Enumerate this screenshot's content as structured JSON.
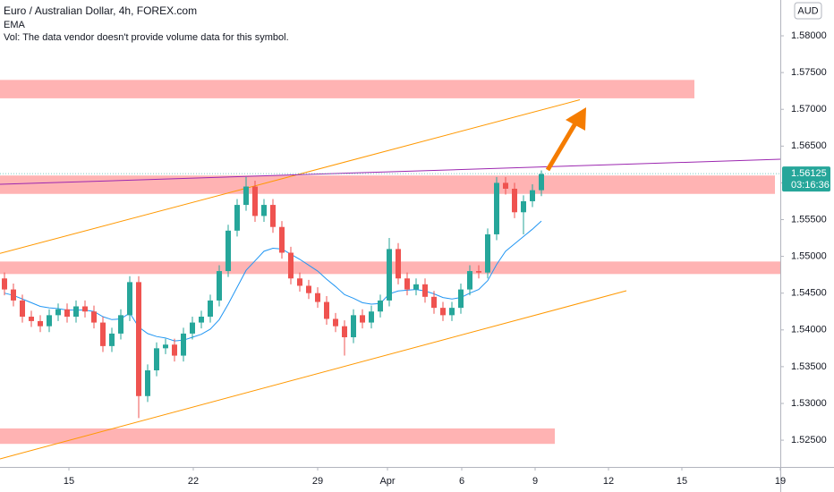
{
  "chart_data": {
    "type": "candlestick",
    "title": "Euro / Australian Dollar, 4h, FOREX.com",
    "indicator": "EMA",
    "volume_note": "Vol: The data vendor doesn't provide volume data for this symbol.",
    "currency": "AUD",
    "up_color": "#26a69a",
    "down_color": "#ef5350",
    "open": [
      1.547,
      1.5455,
      1.544,
      1.5418,
      1.5412,
      1.5405,
      1.542,
      1.5428,
      1.5418,
      1.5432,
      1.5425,
      1.541,
      1.5378,
      1.5395,
      1.542,
      1.5465,
      1.531,
      1.5345,
      1.5375,
      1.538,
      1.5365,
      1.5395,
      1.541,
      1.5418,
      1.544,
      1.548,
      1.5535,
      1.557,
      1.5595,
      1.5555,
      1.557,
      1.554,
      1.5505,
      1.547,
      1.546,
      1.545,
      1.5438,
      1.5415,
      1.5405,
      1.539,
      1.542,
      1.541,
      1.5425,
      1.544,
      1.551,
      1.547,
      1.5455,
      1.5462,
      1.5445,
      1.543,
      1.542,
      1.543,
      1.5455,
      1.548,
      1.5478,
      1.553,
      1.56,
      1.5592,
      1.556,
      1.5575,
      1.559
    ],
    "high": [
      1.5478,
      1.5463,
      1.5448,
      1.5426,
      1.542,
      1.5428,
      1.5436,
      1.5436,
      1.544,
      1.544,
      1.5433,
      1.5418,
      1.5403,
      1.5428,
      1.5473,
      1.5473,
      1.5353,
      1.5383,
      1.5388,
      1.5388,
      1.5403,
      1.5418,
      1.5426,
      1.5448,
      1.5488,
      1.5543,
      1.5578,
      1.5608,
      1.5603,
      1.5578,
      1.5578,
      1.5548,
      1.5513,
      1.5478,
      1.5468,
      1.5458,
      1.5446,
      1.5423,
      1.5413,
      1.5428,
      1.5428,
      1.5433,
      1.5448,
      1.5525,
      1.5518,
      1.5478,
      1.547,
      1.547,
      1.5453,
      1.5438,
      1.5438,
      1.5463,
      1.5488,
      1.5488,
      1.5538,
      1.5608,
      1.5608,
      1.56,
      1.5583,
      1.5598,
      1.5617
    ],
    "low": [
      1.5447,
      1.5432,
      1.541,
      1.5404,
      1.5397,
      1.5397,
      1.5412,
      1.541,
      1.541,
      1.5417,
      1.5402,
      1.537,
      1.537,
      1.5387,
      1.5412,
      1.528,
      1.5302,
      1.5337,
      1.5367,
      1.5357,
      1.5357,
      1.5387,
      1.5402,
      1.541,
      1.5432,
      1.5472,
      1.5527,
      1.5562,
      1.5547,
      1.5547,
      1.5532,
      1.5497,
      1.5462,
      1.5452,
      1.5442,
      1.543,
      1.5407,
      1.5397,
      1.5365,
      1.5382,
      1.5402,
      1.5402,
      1.5417,
      1.5432,
      1.5462,
      1.5447,
      1.5447,
      1.5437,
      1.5422,
      1.5412,
      1.5412,
      1.5422,
      1.5447,
      1.547,
      1.547,
      1.5522,
      1.5584,
      1.5552,
      1.553,
      1.5567,
      1.5582
    ],
    "close": [
      1.5455,
      1.544,
      1.5418,
      1.5412,
      1.5405,
      1.542,
      1.5428,
      1.5418,
      1.5432,
      1.5425,
      1.541,
      1.5378,
      1.5395,
      1.542,
      1.5465,
      1.531,
      1.5345,
      1.5375,
      1.538,
      1.5365,
      1.5395,
      1.541,
      1.5418,
      1.544,
      1.548,
      1.5535,
      1.557,
      1.5595,
      1.5555,
      1.557,
      1.554,
      1.5505,
      1.547,
      1.546,
      1.545,
      1.5438,
      1.5415,
      1.5405,
      1.539,
      1.542,
      1.541,
      1.5425,
      1.544,
      1.551,
      1.547,
      1.5455,
      1.5462,
      1.5445,
      1.543,
      1.542,
      1.543,
      1.5455,
      1.548,
      1.5478,
      1.553,
      1.56,
      1.5592,
      1.556,
      1.5575,
      1.559,
      1.5612
    ],
    "ema": {
      "color": "#2196f3",
      "values": [
        1.545,
        1.5447,
        1.5442,
        1.5437,
        1.5432,
        1.543,
        1.5429,
        1.5427,
        1.5427,
        1.5427,
        1.5425,
        1.5418,
        1.5414,
        1.5415,
        1.5423,
        1.5404,
        1.5395,
        1.5391,
        1.5389,
        1.5385,
        1.5386,
        1.539,
        1.5394,
        1.5401,
        1.5414,
        1.5435,
        1.5458,
        1.5481,
        1.5494,
        1.5507,
        1.5511,
        1.551,
        1.5503,
        1.5496,
        1.5488,
        1.548,
        1.5469,
        1.5459,
        1.5448,
        1.5443,
        1.5437,
        1.5435,
        1.5436,
        1.5449,
        1.5453,
        1.5454,
        1.5455,
        1.5453,
        1.5449,
        1.5444,
        1.5442,
        1.5444,
        1.545,
        1.5455,
        1.5467,
        1.5489,
        1.5507,
        1.5517,
        1.5527,
        1.5537,
        1.5548
      ]
    },
    "zones": [
      {
        "color": "#ffb3b3",
        "from": 1.574,
        "to": 1.5715,
        "x": [
          -0.5,
          77.1
        ]
      },
      {
        "color": "#ffb3b3",
        "from": 1.561,
        "to": 1.5585,
        "x": [
          -0.5,
          86.1
        ]
      },
      {
        "color": "#ffb3b3",
        "from": 1.5493,
        "to": 1.5476,
        "x": [
          -0.5,
          86.7
        ]
      },
      {
        "color": "#ffb3b3",
        "from": 1.5266,
        "to": 1.5245,
        "x": [
          -0.5,
          61.5
        ]
      }
    ],
    "trend_lines": [
      {
        "color": "#ff9800",
        "x": [
          -0.5,
          64.3
        ],
        "y": [
          1.5504,
          1.5713
        ]
      },
      {
        "color": "#ff9800",
        "x": [
          -0.5,
          69.5
        ],
        "y": [
          1.52246,
          1.54533
        ]
      },
      {
        "color": "#9c27b0",
        "x": [
          -0.5,
          86.7
        ],
        "y": [
          1.5598,
          1.56321
        ]
      }
    ],
    "last_price": 1.56125,
    "countdown": "03:16:36",
    "xlim": [
      -0.5,
      86.7
    ],
    "ylim": [
      1.52136,
      1.58487
    ],
    "xticks": [
      {
        "value": 7.2,
        "label": "15"
      },
      {
        "value": 21.1,
        "label": "22"
      },
      {
        "value": 35,
        "label": "29"
      },
      {
        "value": 42.8,
        "label": "Apr"
      },
      {
        "value": 51.1,
        "label": "6"
      },
      {
        "value": 59.3,
        "label": "9"
      },
      {
        "value": 67.5,
        "label": "12"
      },
      {
        "value": 75.7,
        "label": "15"
      },
      {
        "value": 86.7,
        "label": "19"
      }
    ],
    "yticks": [
      {
        "value": 1.58,
        "label": "1.58000"
      },
      {
        "value": 1.575,
        "label": "1.57500"
      },
      {
        "value": 1.57,
        "label": "1.57000"
      },
      {
        "value": 1.565,
        "label": "1.56500"
      },
      {
        "value": 1.56,
        "label": "1.56000"
      },
      {
        "value": 1.555,
        "label": "1.55500"
      },
      {
        "value": 1.55,
        "label": "1.55000"
      },
      {
        "value": 1.545,
        "label": "1.54500"
      },
      {
        "value": 1.54,
        "label": "1.54000"
      },
      {
        "value": 1.535,
        "label": "1.53500"
      },
      {
        "value": 1.53,
        "label": "1.53000"
      },
      {
        "value": 1.525,
        "label": "1.52500"
      }
    ]
  }
}
